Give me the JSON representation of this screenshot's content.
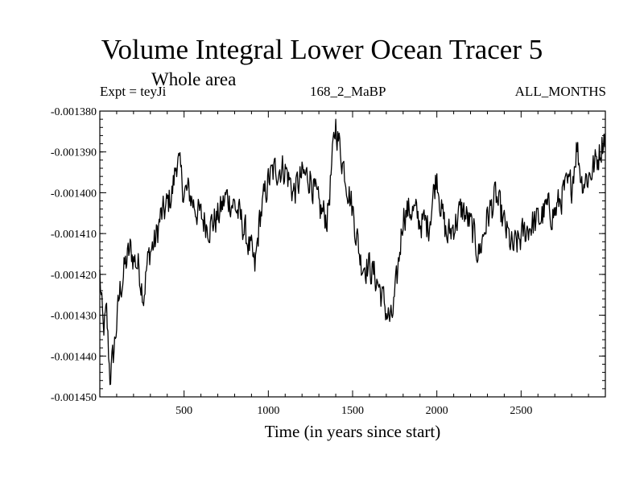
{
  "chart_data": {
    "type": "line",
    "title": "Volume Integral Lower Ocean Tracer 5",
    "subtitle": "Whole area",
    "header_left": "Expt = teyJi",
    "header_center": "168_2_MaBP",
    "header_right": "ALL_MONTHS",
    "xlabel": "Time (in years since start)",
    "ylabel": "",
    "xlim": [
      0,
      3000
    ],
    "ylim": [
      -0.00145,
      -0.00138
    ],
    "x_ticks": [
      500,
      1000,
      1500,
      2000,
      2500
    ],
    "x_tick_labels": [
      "500",
      "1000",
      "1500",
      "2000",
      "2500"
    ],
    "y_ticks": [
      -0.00138,
      -0.00139,
      -0.0014,
      -0.00141,
      -0.00142,
      -0.00143,
      -0.00144,
      -0.00145
    ],
    "y_tick_labels": [
      "-0.001380",
      "-0.001390",
      "-0.001400",
      "-0.001410",
      "-0.001420",
      "-0.001430",
      "-0.001440",
      "-0.001450"
    ],
    "series": [
      {
        "name": "Volume Integral Lower Ocean Tracer 5",
        "x": [
          0,
          20,
          40,
          60,
          80,
          100,
          120,
          150,
          180,
          200,
          230,
          260,
          280,
          300,
          330,
          360,
          380,
          400,
          430,
          460,
          480,
          500,
          530,
          560,
          600,
          650,
          700,
          750,
          800,
          850,
          900,
          920,
          950,
          1000,
          1050,
          1100,
          1150,
          1200,
          1250,
          1300,
          1350,
          1400,
          1420,
          1450,
          1500,
          1550,
          1600,
          1650,
          1700,
          1730,
          1760,
          1800,
          1850,
          1900,
          1950,
          2000,
          2030,
          2060,
          2100,
          2150,
          2200,
          2250,
          2300,
          2350,
          2400,
          2450,
          2500,
          2550,
          2600,
          2650,
          2700,
          2750,
          2800,
          2830,
          2860,
          2900,
          2950,
          3000
        ],
        "y": [
          -0.00142,
          -0.001434,
          -0.00143,
          -0.001445,
          -0.00144,
          -0.001432,
          -0.001424,
          -0.001418,
          -0.001414,
          -0.001416,
          -0.001418,
          -0.001425,
          -0.001418,
          -0.001414,
          -0.001412,
          -0.001406,
          -0.001405,
          -0.001403,
          -0.0014,
          -0.001391,
          -0.001396,
          -0.0014,
          -0.0014,
          -0.001403,
          -0.001406,
          -0.001408,
          -0.001406,
          -0.001401,
          -0.001403,
          -0.001408,
          -0.001415,
          -0.001419,
          -0.001406,
          -0.001397,
          -0.001394,
          -0.001394,
          -0.0014,
          -0.001396,
          -0.001396,
          -0.001404,
          -0.001406,
          -0.001383,
          -0.001388,
          -0.001394,
          -0.001404,
          -0.001417,
          -0.001418,
          -0.001422,
          -0.001429,
          -0.001432,
          -0.001423,
          -0.001405,
          -0.001404,
          -0.001407,
          -0.001408,
          -0.001395,
          -0.001405,
          -0.001411,
          -0.001408,
          -0.001404,
          -0.001408,
          -0.001415,
          -0.001406,
          -0.001401,
          -0.001408,
          -0.001414,
          -0.001411,
          -0.001408,
          -0.001407,
          -0.001404,
          -0.001405,
          -0.0014,
          -0.001398,
          -0.001388,
          -0.001397,
          -0.001396,
          -0.001392,
          -0.001385
        ]
      }
    ]
  }
}
